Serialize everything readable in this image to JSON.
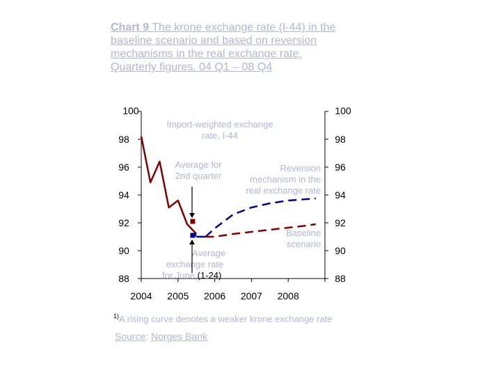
{
  "title_part1": "Chart 9",
  "title_part2": "The krone exchange rate (I-44) in the baseline scenario and based on reversion mechanisms in the real exchange rate.",
  "title_part3": "Quarterly figures. 04 Q1 – 08 Q4",
  "footnote_marker": "1)",
  "footnote_text": "A rising curve denotes a weaker krone exchange rate",
  "source_label": "Source",
  "source_sep": ": ",
  "source_value": "Norges Bank",
  "chart_data": {
    "type": "line",
    "y_ticks": [
      88,
      90,
      92,
      94,
      96,
      98,
      100
    ],
    "y_tick_labels": [
      "88",
      "90",
      "92",
      "94",
      "96",
      "98",
      "100"
    ],
    "x_tick_labels": [
      "2004",
      "2005",
      "2006",
      "2007",
      "2008"
    ],
    "xlim": [
      2004,
      2009
    ],
    "ylim": [
      88,
      100
    ],
    "colors": {
      "historical": "#800000",
      "reversion": "#000080",
      "baseline": "#800000",
      "annotation": "#b5b5d6"
    },
    "series": [
      {
        "x": [
          2004.0,
          2004.25,
          2004.5,
          2004.75,
          2005.0,
          2005.25,
          2005.5
        ],
        "values": [
          98.2,
          94.9,
          96.4,
          93.1,
          93.6,
          91.9,
          91.2
        ]
      },
      {
        "x": [
          2005.75,
          2006.0,
          2006.5,
          2007.0,
          2007.5,
          2008.0,
          2008.5,
          2008.75
        ],
        "values": [
          91.0,
          91.6,
          92.6,
          93.1,
          93.4,
          93.6,
          93.7,
          93.75
        ]
      },
      {
        "x": [
          2005.75,
          2006.0,
          2006.5,
          2007.0,
          2007.5,
          2008.0,
          2008.5,
          2008.75
        ],
        "values": [
          91.0,
          91.0,
          91.2,
          91.35,
          91.5,
          91.65,
          91.8,
          91.9
        ]
      }
    ],
    "markers": [
      {
        "x": 2005.4,
        "y": 92.1
      },
      {
        "x": 2005.4,
        "y": 91.1
      }
    ],
    "annotations": [
      {
        "lines": [
          "Import-weighted exchange",
          "rate, I-44"
        ]
      },
      {
        "lines": [
          "Average for",
          "2nd quarter"
        ]
      },
      {
        "lines": [
          "Reversion",
          "mechanism in the",
          "real exchange rate"
        ]
      },
      {
        "lines": [
          "Baseline",
          "scenario"
        ]
      },
      {
        "lines": [
          "Average",
          "exchange rate",
          "for June"
        ],
        "suffix": " (1-24)"
      }
    ]
  }
}
